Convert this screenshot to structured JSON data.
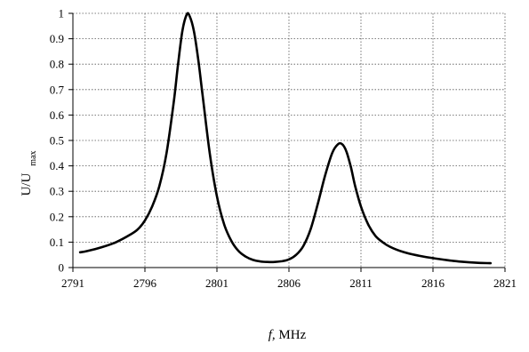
{
  "chart_data": {
    "type": "line",
    "title": "",
    "xlabel": {
      "italic_part": "f,",
      "rest": " MHz"
    },
    "ylabel": {
      "main": "U/U",
      "subscript": "max"
    },
    "xlim": [
      2791,
      2821
    ],
    "ylim": [
      0,
      1
    ],
    "x_ticks": [
      "2791",
      "2796",
      "2801",
      "2806",
      "2811",
      "2816",
      "2821"
    ],
    "y_ticks": [
      "0",
      "0.1",
      "0.2",
      "0.3",
      "0.4",
      "0.5",
      "0.6",
      "0.7",
      "0.8",
      "0.9",
      "1"
    ],
    "grid": true,
    "grid_style": "dotted",
    "line_color": "#000000",
    "series": [
      {
        "x": [
          2791.5,
          2792,
          2793,
          2794,
          2795,
          2795.5,
          2796,
          2796.5,
          2797,
          2797.5,
          2798,
          2798.3,
          2798.6,
          2798.9,
          2799.1,
          2799.4,
          2799.7,
          2800,
          2800.5,
          2801,
          2801.5,
          2802,
          2802.5,
          2803,
          2803.5,
          2804,
          2804.5,
          2805,
          2805.5,
          2806,
          2806.5,
          2807,
          2807.5,
          2808,
          2808.5,
          2809,
          2809.4,
          2809.7,
          2810,
          2810.3,
          2810.6,
          2811,
          2811.5,
          2812,
          2812.5,
          2813,
          2814,
          2815,
          2816,
          2817,
          2818,
          2819,
          2820
        ],
        "y": [
          0.06,
          0.065,
          0.08,
          0.1,
          0.13,
          0.15,
          0.185,
          0.24,
          0.32,
          0.45,
          0.65,
          0.8,
          0.93,
          0.995,
          0.99,
          0.93,
          0.82,
          0.68,
          0.45,
          0.28,
          0.17,
          0.105,
          0.065,
          0.043,
          0.03,
          0.024,
          0.022,
          0.022,
          0.025,
          0.032,
          0.05,
          0.085,
          0.15,
          0.25,
          0.36,
          0.45,
          0.485,
          0.485,
          0.455,
          0.395,
          0.32,
          0.24,
          0.17,
          0.125,
          0.1,
          0.082,
          0.06,
          0.047,
          0.037,
          0.029,
          0.023,
          0.019,
          0.017
        ]
      }
    ]
  }
}
